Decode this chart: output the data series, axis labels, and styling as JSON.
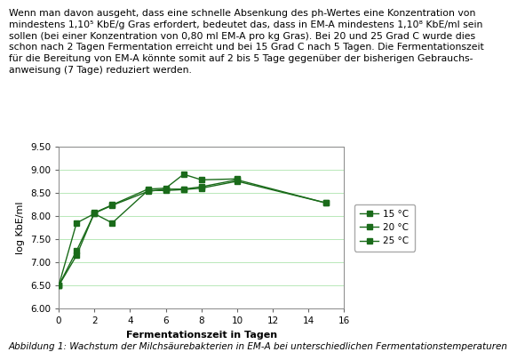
{
  "title_text": "Wenn man davon ausgeht, dass eine schnelle Absenkung des ph-Wertes eine Konzentration von\nmindestens 1,10⁵ KbE/g Gras erfordert, bedeutet das, dass in EM-A mindestens 1,10⁸ KbE/ml sein\nsollen (bei einer Konzentration von 0,80 ml EM-A pro kg Gras). Bei 20 und 25 Grad C wurde dies\nschon nach 2 Tagen Fermentation erreicht und bei 15 Grad C nach 5 Tagen. Die Fermentationszeit\nfür die Bereitung von EM-A könnte somit auf 2 bis 5 Tage gegenüber der bisherigen Gebrauchs-\nanweisung (7 Tage) reduziert werden.",
  "caption": "Abbildung 1: Wachstum der Milchsäurebakterien in EM-A bei unterschiedlichen Fermentationstemperaturen",
  "xlabel": "Fermentationszeit in Tagen",
  "ylabel": "log KbE/ml",
  "xlim": [
    0,
    16
  ],
  "ylim": [
    6.0,
    9.5
  ],
  "ytick_vals": [
    6.0,
    6.5,
    7.0,
    7.5,
    8.0,
    8.5,
    9.0,
    9.5
  ],
  "ytick_labels": [
    "6.00",
    "6.50",
    "7.00",
    "7.50",
    "8.00",
    "8.50",
    "9.00",
    "9.50"
  ],
  "xticks": [
    0,
    2,
    4,
    6,
    8,
    10,
    12,
    14,
    16
  ],
  "series": [
    {
      "label": "15 °C",
      "x": [
        0,
        1,
        2,
        3,
        5,
        6,
        7,
        8,
        10,
        15
      ],
      "y": [
        6.5,
        7.85,
        8.05,
        7.85,
        8.55,
        8.55,
        8.57,
        8.6,
        8.75,
        8.28
      ],
      "color": "#1a6b1a",
      "marker": "s",
      "markersize": 4,
      "linewidth": 1.0
    },
    {
      "label": "20 °C",
      "x": [
        0,
        1,
        2,
        3,
        5,
        6,
        7,
        8,
        10,
        15
      ],
      "y": [
        6.5,
        7.25,
        8.06,
        8.23,
        8.53,
        8.58,
        8.58,
        8.63,
        8.78,
        8.28
      ],
      "color": "#1a6b1a",
      "marker": "s",
      "markersize": 4,
      "linewidth": 1.0
    },
    {
      "label": "25 °C",
      "x": [
        0,
        1,
        2,
        3,
        5,
        6,
        7,
        8,
        10
      ],
      "y": [
        6.5,
        7.15,
        8.07,
        8.24,
        8.58,
        8.6,
        8.9,
        8.78,
        8.8
      ],
      "color": "#1a6b1a",
      "marker": "s",
      "markersize": 4,
      "linewidth": 1.0
    }
  ],
  "grid_color": "#b8e8b8",
  "bg_color": "#ffffff",
  "plot_bg_color": "#ffffff",
  "text_color": "#000000",
  "body_font_size": 7.8,
  "axis_font_size": 8.0,
  "tick_font_size": 7.5,
  "caption_font_size": 7.5,
  "legend_font_size": 7.5
}
